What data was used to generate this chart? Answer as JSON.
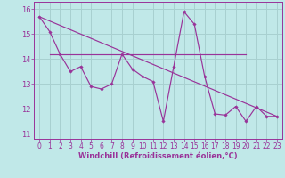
{
  "title": "",
  "xlabel": "Windchill (Refroidissement éolien,°C)",
  "bg_color": "#c0e8e8",
  "grid_color": "#a8d0d0",
  "line_color": "#993399",
  "hours": [
    0,
    1,
    2,
    3,
    4,
    5,
    6,
    7,
    8,
    9,
    10,
    11,
    12,
    13,
    14,
    15,
    16,
    17,
    18,
    19,
    20,
    21,
    22,
    23
  ],
  "values": [
    15.7,
    15.1,
    14.2,
    13.5,
    13.7,
    12.9,
    12.8,
    13.0,
    14.2,
    13.6,
    13.3,
    13.1,
    11.5,
    13.7,
    15.9,
    15.4,
    13.3,
    11.8,
    11.75,
    12.1,
    11.5,
    12.1,
    11.7,
    11.7
  ],
  "trend_x": [
    0,
    23
  ],
  "trend_y": [
    15.7,
    11.7
  ],
  "flat_y": 14.2,
  "flat_x_start": 1,
  "flat_x_end": 20,
  "ylim": [
    10.8,
    16.3
  ],
  "xlim": [
    -0.5,
    23.5
  ],
  "yticks": [
    11,
    12,
    13,
    14,
    15,
    16
  ],
  "xticks": [
    0,
    1,
    2,
    3,
    4,
    5,
    6,
    7,
    8,
    9,
    10,
    11,
    12,
    13,
    14,
    15,
    16,
    17,
    18,
    19,
    20,
    21,
    22,
    23
  ],
  "tick_fontsize": 5.5,
  "label_fontsize": 6.0
}
